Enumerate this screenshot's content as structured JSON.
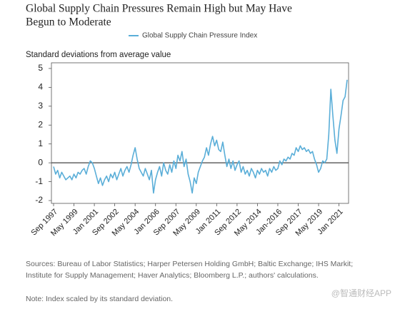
{
  "chart_data": {
    "type": "line",
    "title": [
      "Global Supply Chain Pressures Remain High but May Have",
      "Begun to Moderate"
    ],
    "y_label": "Standard deviations from average value",
    "categories": [
      "Sep 1997",
      null,
      null,
      null,
      null,
      null,
      null,
      null,
      null,
      null,
      "May 1999",
      null,
      null,
      null,
      null,
      null,
      null,
      null,
      null,
      null,
      "Jan 2001",
      null,
      null,
      null,
      null,
      null,
      null,
      null,
      null,
      null,
      "Sep 2002",
      null,
      null,
      null,
      null,
      null,
      null,
      null,
      null,
      null,
      "May 2004",
      null,
      null,
      null,
      null,
      null,
      null,
      null,
      null,
      null,
      "Jan 2006",
      null,
      null,
      null,
      null,
      null,
      null,
      null,
      null,
      null,
      "Sep 2007",
      null,
      null,
      null,
      null,
      null,
      null,
      null,
      null,
      null,
      "May 2009",
      null,
      null,
      null,
      null,
      null,
      null,
      null,
      null,
      null,
      "Jan 2011",
      null,
      null,
      null,
      null,
      null,
      null,
      null,
      null,
      null,
      "Sep 2012",
      null,
      null,
      null,
      null,
      null,
      null,
      null,
      null,
      null,
      "May 2014",
      null,
      null,
      null,
      null,
      null,
      null,
      null,
      null,
      null,
      "Jan-2016",
      null,
      null,
      null,
      null,
      null,
      null,
      null,
      null,
      null,
      "Sep 2017",
      null,
      null,
      null,
      null,
      null,
      null,
      null,
      null,
      null,
      "May 2019",
      null,
      null,
      null,
      null,
      null,
      null,
      null,
      null,
      null,
      "Jan 2021",
      null,
      null,
      null,
      null
    ],
    "series": [
      {
        "name": "Global Supply Chain Pressure Index",
        "color": "#5aaed8",
        "values": [
          -0.2,
          -0.6,
          -0.4,
          -0.8,
          -0.5,
          -0.7,
          -0.9,
          -0.8,
          -0.7,
          -0.9,
          -0.6,
          -0.8,
          -0.5,
          -0.6,
          -0.4,
          -0.3,
          -0.6,
          -0.2,
          0.1,
          0.0,
          -0.3,
          -0.7,
          -1.1,
          -0.8,
          -1.2,
          -0.9,
          -0.7,
          -1.0,
          -0.6,
          -0.8,
          -0.5,
          -0.9,
          -0.6,
          -0.3,
          -0.7,
          -0.4,
          -0.2,
          -0.5,
          -0.1,
          0.4,
          0.8,
          0.2,
          -0.3,
          -0.5,
          -0.7,
          -0.3,
          -0.6,
          -0.9,
          -0.4,
          -1.6,
          -0.9,
          -0.5,
          -0.2,
          -0.7,
          0.0,
          -0.4,
          -0.6,
          -0.1,
          -0.5,
          0.1,
          -0.3,
          0.4,
          0.1,
          0.6,
          -0.2,
          0.2,
          -0.6,
          -1.0,
          -1.6,
          -0.8,
          -1.1,
          -0.5,
          -0.2,
          0.1,
          0.3,
          0.8,
          0.4,
          1.0,
          1.4,
          0.9,
          1.2,
          0.7,
          0.6,
          1.1,
          0.4,
          -0.2,
          0.2,
          -0.3,
          0.1,
          -0.4,
          -0.1,
          0.1,
          -0.5,
          -0.2,
          -0.6,
          -0.4,
          -0.7,
          -0.3,
          -0.5,
          -0.8,
          -0.4,
          -0.6,
          -0.3,
          -0.5,
          -0.4,
          -0.7,
          -0.3,
          -0.5,
          -0.2,
          -0.4,
          -0.3,
          0.1,
          -0.1,
          0.2,
          0.1,
          0.3,
          0.2,
          0.5,
          0.4,
          0.8,
          0.6,
          0.9,
          0.7,
          0.8,
          0.6,
          0.7,
          0.5,
          0.6,
          0.2,
          -0.1,
          -0.5,
          -0.3,
          0.1,
          0.0,
          0.2,
          1.5,
          3.9,
          2.5,
          1.2,
          0.5,
          1.8,
          2.5,
          3.3,
          3.5,
          4.4
        ]
      }
    ],
    "ylim": [
      -2.15,
      5.3
    ],
    "yticks": [
      -2,
      -1,
      0,
      1,
      2,
      3,
      4,
      5
    ],
    "grid": false,
    "legend": "top",
    "sources": [
      "Sources: Bureau of Labor Statistics; Harper Petersen Holding GmbH; Baltic Exchange; IHS Markit;",
      "Institute for Supply Management; Haver Analytics; Bloomberg L.P.; authors' calculations."
    ],
    "note": "Note: Index scaled by its standard deviation.",
    "watermark": "@智通财经APP"
  }
}
